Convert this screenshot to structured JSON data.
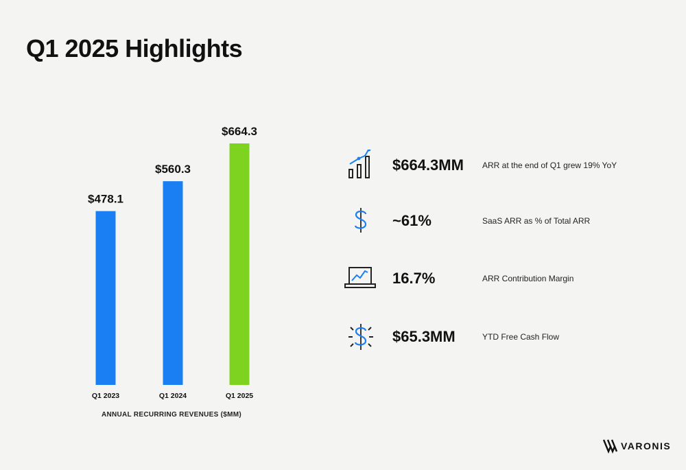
{
  "title": "Q1 2025 Highlights",
  "chart_data": {
    "type": "bar",
    "categories": [
      "Q1 2023",
      "Q1 2024",
      "Q1 2025"
    ],
    "values": [
      478.1,
      560.3,
      664.3
    ],
    "value_labels": [
      "$478.1",
      "$560.3",
      "$664.3"
    ],
    "xlabel": "ANNUAL RECURRING REVENUES ($MM)",
    "ylabel": "",
    "ylim": [
      0,
      700
    ],
    "bar_colors": [
      "#1a7ff2",
      "#1a7ff2",
      "#7ed321"
    ],
    "grid": false
  },
  "metrics": [
    {
      "icon": "growth-chart-icon",
      "value": "$664.3MM",
      "desc": "ARR at the end of Q1 grew 19% YoY"
    },
    {
      "icon": "dollar-icon",
      "value": "~61%",
      "desc": "SaaS ARR as % of Total ARR"
    },
    {
      "icon": "laptop-chart-icon",
      "value": "16.7%",
      "desc": "ARR Contribution Margin"
    },
    {
      "icon": "dollar-burst-icon",
      "value": "$65.3MM",
      "desc": "YTD Free Cash Flow"
    }
  ],
  "logo": {
    "text": "VARONIS"
  },
  "colors": {
    "accent_blue": "#1a7ff2",
    "accent_green": "#7ed321"
  }
}
